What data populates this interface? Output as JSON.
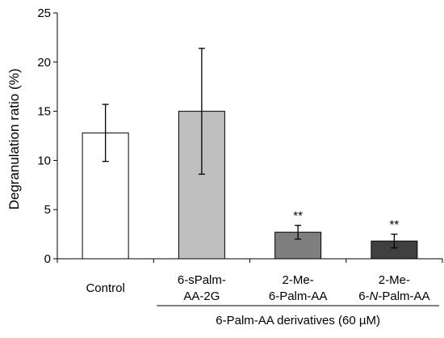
{
  "chart_data": {
    "type": "bar",
    "title": "",
    "ylabel": "Degranulation ratio (%)",
    "ylim": [
      0,
      25
    ],
    "yticks": [
      0,
      5,
      10,
      15,
      20,
      25
    ],
    "grid": false,
    "categories": [
      {
        "lines": [
          "Control"
        ],
        "italic_token": ""
      },
      {
        "lines": [
          "6-sPalm-",
          "AA-2G"
        ],
        "italic_token": ""
      },
      {
        "lines": [
          "2-Me-",
          "6-Palm-AA"
        ],
        "italic_token": ""
      },
      {
        "lines": [
          "2-Me-",
          "6-N-Palm-AA"
        ],
        "italic_token": "N"
      }
    ],
    "values": [
      12.8,
      15.0,
      2.7,
      1.8
    ],
    "errors": [
      2.9,
      6.4,
      0.7,
      0.7
    ],
    "bar_colors": [
      "#ffffff",
      "#bfbfbf",
      "#7f7f7f",
      "#404040"
    ],
    "significance": [
      "",
      "",
      "**",
      "**"
    ],
    "group_label": "6-Palm-AA derivatives (60 µM)",
    "group_categories": [
      1,
      3
    ]
  }
}
